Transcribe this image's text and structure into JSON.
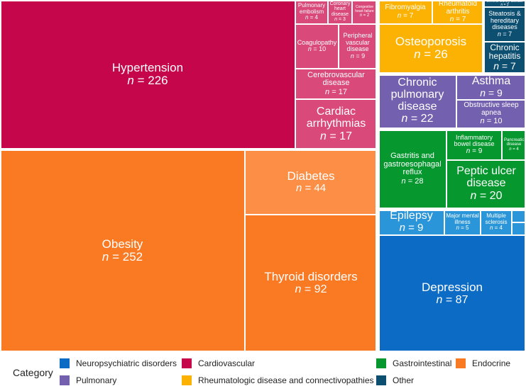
{
  "chart_data": {
    "type": "treemap",
    "value_prefix": "n = ",
    "colors": {
      "cardiovascular": "#c5064a",
      "cardiovascular_light": "#d9497a",
      "endocrine": "#fa7a23",
      "endocrine_light": "#fc8e45",
      "rheumatologic": "#fbb202",
      "pulmonary": "#7361b0",
      "gastrointestinal": "#06982f",
      "neuropsychiatric": "#0b6bc5",
      "neuropsychiatric_light": "#2a95d8",
      "other": "#0c4f70"
    },
    "legend": {
      "title": "Category",
      "items": [
        {
          "key": "neuropsychiatric",
          "label": "Neuropsychiatric disorders"
        },
        {
          "key": "pulmonary",
          "label": "Pulmonary"
        },
        {
          "key": "cardiovascular",
          "label": "Cardiovascular"
        },
        {
          "key": "rheumatologic",
          "label": "Rheumatologic disease and connectivopathies"
        },
        {
          "key": "gastrointestinal",
          "label": "Gastrointestinal"
        },
        {
          "key": "other",
          "label": "Other"
        },
        {
          "key": "endocrine",
          "label": "Endocrine"
        }
      ]
    },
    "items": [
      {
        "id": "hypertension",
        "label": "Hypertension",
        "value": 226,
        "category": "cardiovascular"
      },
      {
        "id": "pulmonary-embolism",
        "label": "Pulmonary embolism",
        "value": 4,
        "category": "cardiovascular"
      },
      {
        "id": "coronary-heart-disease",
        "label": "Coronary heart disease",
        "value": 3,
        "category": "cardiovascular"
      },
      {
        "id": "congestive-heart-failure",
        "label": "Congestive heart failure",
        "value": 2,
        "category": "cardiovascular"
      },
      {
        "id": "coagulopathy",
        "label": "Coagulopathy",
        "value": 10,
        "category": "cardiovascular"
      },
      {
        "id": "peripheral-vascular-disease",
        "label": "Peripheral vascular disease",
        "value": 9,
        "category": "cardiovascular"
      },
      {
        "id": "cerebrovascular-disease",
        "label": "Cerebrovascular disease",
        "value": 17,
        "category": "cardiovascular"
      },
      {
        "id": "cardiac-arrhythmias",
        "label": "Cardiac arrhythmias",
        "value": 17,
        "category": "cardiovascular"
      },
      {
        "id": "obesity",
        "label": "Obesity",
        "value": 252,
        "category": "endocrine"
      },
      {
        "id": "diabetes",
        "label": "Diabetes",
        "value": 44,
        "category": "endocrine"
      },
      {
        "id": "thyroid-disorders",
        "label": "Thyroid disorders",
        "value": 92,
        "category": "endocrine"
      },
      {
        "id": "fibromyalgia",
        "label": "Fibromyalgia",
        "value": 7,
        "category": "rheumatologic"
      },
      {
        "id": "rheumatoid-arthritis",
        "label": "Rheumatoid arthritis",
        "value": 7,
        "category": "rheumatologic"
      },
      {
        "id": "osteoporosis",
        "label": "Osteoporosis",
        "value": 26,
        "category": "rheumatologic"
      },
      {
        "id": "chronic-kidney-disease",
        "label": "Chronic kidney disease",
        "value": 2,
        "category": "other"
      },
      {
        "id": "steatosis",
        "label": "Steatosis & hereditary diseases",
        "value": 7,
        "category": "other"
      },
      {
        "id": "chronic-hepatitis",
        "label": "Chronic hepatitis",
        "value": 7,
        "category": "other"
      },
      {
        "id": "chronic-pulmonary-disease",
        "label": "Chronic pulmonary disease",
        "value": 22,
        "category": "pulmonary"
      },
      {
        "id": "asthma",
        "label": "Asthma",
        "value": 9,
        "category": "pulmonary"
      },
      {
        "id": "obstructive-sleep-apnea",
        "label": "Obstructive sleep apnea",
        "value": 10,
        "category": "pulmonary"
      },
      {
        "id": "gastritis-gerd",
        "label": "Gastritis and gastroesophagal reflux",
        "value": 28,
        "category": "gastrointestinal"
      },
      {
        "id": "inflammatory-bowel-disease",
        "label": "Inflammatory bowel disease",
        "value": 9,
        "category": "gastrointestinal"
      },
      {
        "id": "pancreatic-disease",
        "label": "Pancreatic disease",
        "value": 4,
        "category": "gastrointestinal"
      },
      {
        "id": "peptic-ulcer-disease",
        "label": "Peptic ulcer disease",
        "value": 20,
        "category": "gastrointestinal"
      },
      {
        "id": "epilepsy",
        "label": "Epilepsy",
        "value": 9,
        "category": "neuropsychiatric"
      },
      {
        "id": "major-mental-illness",
        "label": "Major mental illness",
        "value": 5,
        "category": "neuropsychiatric"
      },
      {
        "id": "multiple-sclerosis",
        "label": "Multiple sclerosis",
        "value": 4,
        "category": "neuropsychiatric"
      },
      {
        "id": "depression",
        "label": "Depression",
        "value": 87,
        "category": "neuropsychiatric"
      }
    ]
  }
}
